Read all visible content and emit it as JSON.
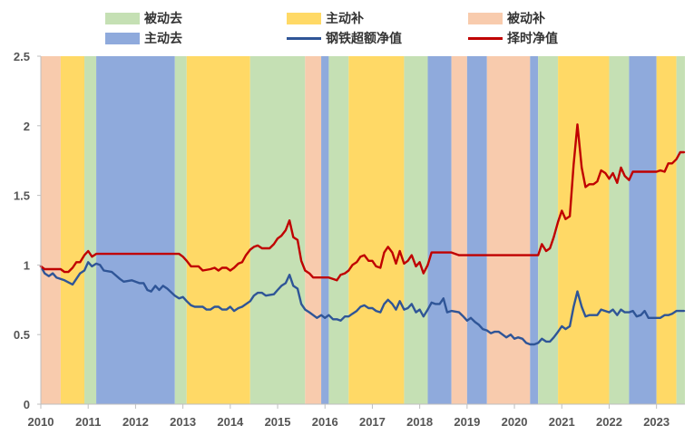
{
  "chart_data": {
    "type": "line",
    "title": "",
    "xlabel": "",
    "ylabel": "",
    "xlim": [
      2010.0,
      2023.6
    ],
    "ylim": [
      0,
      2.5
    ],
    "x_ticks": [
      "2010",
      "2011",
      "2012",
      "2013",
      "2014",
      "2015",
      "2016",
      "2017",
      "2018",
      "2019",
      "2020",
      "2021",
      "2022",
      "2023"
    ],
    "y_ticks": [
      "0",
      "0.5",
      "1",
      "1.5",
      "2",
      "2.5"
    ],
    "grid": false,
    "legend": {
      "position": "top",
      "regimes": [
        {
          "key": "bei_dong_qu",
          "label": "被动去",
          "color": "#c5e0b4"
        },
        {
          "key": "zhu_dong_bu",
          "label": "主动补",
          "color": "#ffd966"
        },
        {
          "key": "bei_dong_bu",
          "label": "被动补",
          "color": "#f8cbad"
        },
        {
          "key": "zhu_dong_qu",
          "label": "主动去",
          "color": "#8faadc"
        }
      ]
    },
    "regimes": [
      {
        "start": 2010.0,
        "end": 2010.42,
        "type": "bei_dong_bu"
      },
      {
        "start": 2010.42,
        "end": 2010.92,
        "type": "zhu_dong_bu"
      },
      {
        "start": 2010.92,
        "end": 2011.17,
        "type": "bei_dong_qu"
      },
      {
        "start": 2011.17,
        "end": 2012.83,
        "type": "zhu_dong_qu"
      },
      {
        "start": 2012.83,
        "end": 2013.08,
        "type": "bei_dong_qu"
      },
      {
        "start": 2013.08,
        "end": 2014.42,
        "type": "zhu_dong_bu"
      },
      {
        "start": 2014.42,
        "end": 2015.58,
        "type": "bei_dong_qu"
      },
      {
        "start": 2015.58,
        "end": 2015.92,
        "type": "bei_dong_bu"
      },
      {
        "start": 2015.92,
        "end": 2016.08,
        "type": "zhu_dong_qu"
      },
      {
        "start": 2016.08,
        "end": 2016.5,
        "type": "bei_dong_qu"
      },
      {
        "start": 2016.5,
        "end": 2017.67,
        "type": "zhu_dong_bu"
      },
      {
        "start": 2017.67,
        "end": 2018.17,
        "type": "bei_dong_qu"
      },
      {
        "start": 2018.17,
        "end": 2018.67,
        "type": "zhu_dong_qu"
      },
      {
        "start": 2018.67,
        "end": 2019.0,
        "type": "bei_dong_bu"
      },
      {
        "start": 2019.0,
        "end": 2019.42,
        "type": "zhu_dong_qu"
      },
      {
        "start": 2019.42,
        "end": 2020.33,
        "type": "bei_dong_bu"
      },
      {
        "start": 2020.33,
        "end": 2020.5,
        "type": "zhu_dong_qu"
      },
      {
        "start": 2020.5,
        "end": 2020.92,
        "type": "bei_dong_qu"
      },
      {
        "start": 2020.92,
        "end": 2022.0,
        "type": "zhu_dong_bu"
      },
      {
        "start": 2022.0,
        "end": 2022.42,
        "type": "bei_dong_qu"
      },
      {
        "start": 2022.42,
        "end": 2023.0,
        "type": "zhu_dong_qu"
      },
      {
        "start": 2023.0,
        "end": 2023.42,
        "type": "zhu_dong_bu"
      },
      {
        "start": 2023.42,
        "end": 2023.6,
        "type": "bei_dong_qu"
      }
    ],
    "series": [
      {
        "name": "钢铁超额净值",
        "color": "#2f5597",
        "points": [
          [
            2010.0,
            0.99
          ],
          [
            2010.08,
            0.94
          ],
          [
            2010.17,
            0.92
          ],
          [
            2010.25,
            0.94
          ],
          [
            2010.33,
            0.91
          ],
          [
            2010.5,
            0.89
          ],
          [
            2010.67,
            0.86
          ],
          [
            2010.83,
            0.94
          ],
          [
            2010.92,
            0.96
          ],
          [
            2011.0,
            1.02
          ],
          [
            2011.08,
            0.99
          ],
          [
            2011.17,
            1.01
          ],
          [
            2011.25,
            1.0
          ],
          [
            2011.33,
            0.96
          ],
          [
            2011.5,
            0.95
          ],
          [
            2011.67,
            0.9
          ],
          [
            2011.75,
            0.88
          ],
          [
            2011.92,
            0.89
          ],
          [
            2012.08,
            0.87
          ],
          [
            2012.17,
            0.87
          ],
          [
            2012.25,
            0.82
          ],
          [
            2012.33,
            0.81
          ],
          [
            2012.42,
            0.85
          ],
          [
            2012.5,
            0.82
          ],
          [
            2012.58,
            0.85
          ],
          [
            2012.67,
            0.83
          ],
          [
            2012.83,
            0.78
          ],
          [
            2012.92,
            0.76
          ],
          [
            2013.0,
            0.77
          ],
          [
            2013.08,
            0.74
          ],
          [
            2013.17,
            0.71
          ],
          [
            2013.25,
            0.7
          ],
          [
            2013.42,
            0.7
          ],
          [
            2013.5,
            0.68
          ],
          [
            2013.58,
            0.68
          ],
          [
            2013.67,
            0.7
          ],
          [
            2013.75,
            0.7
          ],
          [
            2013.83,
            0.68
          ],
          [
            2013.92,
            0.68
          ],
          [
            2014.0,
            0.7
          ],
          [
            2014.08,
            0.67
          ],
          [
            2014.17,
            0.69
          ],
          [
            2014.25,
            0.7
          ],
          [
            2014.42,
            0.74
          ],
          [
            2014.5,
            0.78
          ],
          [
            2014.58,
            0.8
          ],
          [
            2014.67,
            0.8
          ],
          [
            2014.75,
            0.78
          ],
          [
            2014.92,
            0.79
          ],
          [
            2015.0,
            0.82
          ],
          [
            2015.08,
            0.85
          ],
          [
            2015.17,
            0.87
          ],
          [
            2015.25,
            0.93
          ],
          [
            2015.33,
            0.85
          ],
          [
            2015.42,
            0.83
          ],
          [
            2015.5,
            0.72
          ],
          [
            2015.58,
            0.68
          ],
          [
            2015.67,
            0.66
          ],
          [
            2015.75,
            0.64
          ],
          [
            2015.83,
            0.62
          ],
          [
            2015.92,
            0.64
          ],
          [
            2016.0,
            0.62
          ],
          [
            2016.08,
            0.64
          ],
          [
            2016.17,
            0.61
          ],
          [
            2016.25,
            0.61
          ],
          [
            2016.33,
            0.6
          ],
          [
            2016.42,
            0.63
          ],
          [
            2016.5,
            0.63
          ],
          [
            2016.58,
            0.65
          ],
          [
            2016.67,
            0.67
          ],
          [
            2016.75,
            0.7
          ],
          [
            2016.83,
            0.71
          ],
          [
            2016.92,
            0.69
          ],
          [
            2017.0,
            0.69
          ],
          [
            2017.08,
            0.67
          ],
          [
            2017.17,
            0.66
          ],
          [
            2017.25,
            0.72
          ],
          [
            2017.33,
            0.75
          ],
          [
            2017.42,
            0.72
          ],
          [
            2017.5,
            0.68
          ],
          [
            2017.58,
            0.74
          ],
          [
            2017.67,
            0.68
          ],
          [
            2017.75,
            0.69
          ],
          [
            2017.83,
            0.72
          ],
          [
            2017.92,
            0.66
          ],
          [
            2018.0,
            0.68
          ],
          [
            2018.08,
            0.63
          ],
          [
            2018.17,
            0.68
          ],
          [
            2018.25,
            0.73
          ],
          [
            2018.33,
            0.72
          ],
          [
            2018.42,
            0.72
          ],
          [
            2018.5,
            0.76
          ],
          [
            2018.58,
            0.66
          ],
          [
            2018.67,
            0.67
          ],
          [
            2018.83,
            0.66
          ],
          [
            2018.92,
            0.63
          ],
          [
            2019.0,
            0.6
          ],
          [
            2019.08,
            0.62
          ],
          [
            2019.17,
            0.59
          ],
          [
            2019.25,
            0.57
          ],
          [
            2019.33,
            0.54
          ],
          [
            2019.42,
            0.53
          ],
          [
            2019.5,
            0.51
          ],
          [
            2019.58,
            0.52
          ],
          [
            2019.67,
            0.52
          ],
          [
            2019.75,
            0.5
          ],
          [
            2019.83,
            0.48
          ],
          [
            2019.92,
            0.5
          ],
          [
            2020.0,
            0.47
          ],
          [
            2020.08,
            0.48
          ],
          [
            2020.17,
            0.47
          ],
          [
            2020.25,
            0.44
          ],
          [
            2020.33,
            0.43
          ],
          [
            2020.42,
            0.43
          ],
          [
            2020.5,
            0.44
          ],
          [
            2020.58,
            0.47
          ],
          [
            2020.67,
            0.45
          ],
          [
            2020.75,
            0.45
          ],
          [
            2020.83,
            0.48
          ],
          [
            2020.92,
            0.52
          ],
          [
            2021.0,
            0.56
          ],
          [
            2021.08,
            0.54
          ],
          [
            2021.17,
            0.56
          ],
          [
            2021.25,
            0.7
          ],
          [
            2021.33,
            0.81
          ],
          [
            2021.42,
            0.7
          ],
          [
            2021.5,
            0.63
          ],
          [
            2021.58,
            0.64
          ],
          [
            2021.75,
            0.64
          ],
          [
            2021.83,
            0.68
          ],
          [
            2022.0,
            0.66
          ],
          [
            2022.08,
            0.68
          ],
          [
            2022.17,
            0.64
          ],
          [
            2022.25,
            0.68
          ],
          [
            2022.33,
            0.66
          ],
          [
            2022.42,
            0.66
          ],
          [
            2022.5,
            0.67
          ],
          [
            2022.58,
            0.63
          ],
          [
            2022.67,
            0.64
          ],
          [
            2022.75,
            0.67
          ],
          [
            2022.83,
            0.62
          ],
          [
            2023.0,
            0.62
          ],
          [
            2023.08,
            0.62
          ],
          [
            2023.17,
            0.64
          ],
          [
            2023.25,
            0.64
          ],
          [
            2023.33,
            0.65
          ],
          [
            2023.42,
            0.67
          ],
          [
            2023.58,
            0.67
          ]
        ]
      },
      {
        "name": "择时净值",
        "color": "#c00000",
        "points": [
          [
            2010.0,
            0.99
          ],
          [
            2010.08,
            0.97
          ],
          [
            2010.42,
            0.97
          ],
          [
            2010.5,
            0.95
          ],
          [
            2010.58,
            0.95
          ],
          [
            2010.67,
            0.98
          ],
          [
            2010.75,
            1.02
          ],
          [
            2010.83,
            1.02
          ],
          [
            2010.92,
            1.07
          ],
          [
            2011.0,
            1.1
          ],
          [
            2011.08,
            1.06
          ],
          [
            2011.17,
            1.08
          ],
          [
            2011.5,
            1.08
          ],
          [
            2012.0,
            1.08
          ],
          [
            2012.5,
            1.08
          ],
          [
            2012.92,
            1.08
          ],
          [
            2013.0,
            1.06
          ],
          [
            2013.08,
            1.03
          ],
          [
            2013.17,
            0.99
          ],
          [
            2013.33,
            0.99
          ],
          [
            2013.42,
            0.96
          ],
          [
            2013.58,
            0.97
          ],
          [
            2013.67,
            0.98
          ],
          [
            2013.75,
            0.96
          ],
          [
            2013.83,
            0.98
          ],
          [
            2013.92,
            0.98
          ],
          [
            2014.0,
            0.96
          ],
          [
            2014.08,
            0.98
          ],
          [
            2014.17,
            1.01
          ],
          [
            2014.25,
            1.02
          ],
          [
            2014.33,
            1.07
          ],
          [
            2014.42,
            1.11
          ],
          [
            2014.5,
            1.13
          ],
          [
            2014.58,
            1.14
          ],
          [
            2014.67,
            1.12
          ],
          [
            2014.83,
            1.12
          ],
          [
            2014.92,
            1.15
          ],
          [
            2015.0,
            1.19
          ],
          [
            2015.08,
            1.21
          ],
          [
            2015.17,
            1.25
          ],
          [
            2015.25,
            1.32
          ],
          [
            2015.33,
            1.2
          ],
          [
            2015.42,
            1.18
          ],
          [
            2015.5,
            1.03
          ],
          [
            2015.58,
            0.96
          ],
          [
            2015.67,
            0.94
          ],
          [
            2015.75,
            0.91
          ],
          [
            2016.0,
            0.91
          ],
          [
            2016.08,
            0.91
          ],
          [
            2016.25,
            0.89
          ],
          [
            2016.33,
            0.93
          ],
          [
            2016.42,
            0.94
          ],
          [
            2016.5,
            0.96
          ],
          [
            2016.58,
            1.0
          ],
          [
            2016.67,
            1.02
          ],
          [
            2016.75,
            1.06
          ],
          [
            2016.83,
            1.07
          ],
          [
            2016.92,
            1.03
          ],
          [
            2017.0,
            1.03
          ],
          [
            2017.08,
            0.99
          ],
          [
            2017.17,
            0.98
          ],
          [
            2017.25,
            1.09
          ],
          [
            2017.33,
            1.13
          ],
          [
            2017.42,
            1.09
          ],
          [
            2017.5,
            1.01
          ],
          [
            2017.58,
            1.1
          ],
          [
            2017.67,
            1.01
          ],
          [
            2017.75,
            1.03
          ],
          [
            2017.83,
            1.07
          ],
          [
            2017.92,
            0.99
          ],
          [
            2018.0,
            1.02
          ],
          [
            2018.08,
            0.94
          ],
          [
            2018.17,
            1.0
          ],
          [
            2018.25,
            1.09
          ],
          [
            2018.42,
            1.09
          ],
          [
            2018.67,
            1.09
          ],
          [
            2018.83,
            1.07
          ],
          [
            2019.0,
            1.07
          ],
          [
            2019.5,
            1.07
          ],
          [
            2020.0,
            1.07
          ],
          [
            2020.5,
            1.07
          ],
          [
            2020.58,
            1.15
          ],
          [
            2020.67,
            1.1
          ],
          [
            2020.75,
            1.12
          ],
          [
            2020.83,
            1.2
          ],
          [
            2020.92,
            1.31
          ],
          [
            2021.0,
            1.39
          ],
          [
            2021.08,
            1.33
          ],
          [
            2021.17,
            1.35
          ],
          [
            2021.25,
            1.72
          ],
          [
            2021.33,
            2.01
          ],
          [
            2021.42,
            1.7
          ],
          [
            2021.5,
            1.56
          ],
          [
            2021.58,
            1.58
          ],
          [
            2021.67,
            1.58
          ],
          [
            2021.75,
            1.6
          ],
          [
            2021.83,
            1.68
          ],
          [
            2021.92,
            1.66
          ],
          [
            2022.0,
            1.62
          ],
          [
            2022.08,
            1.66
          ],
          [
            2022.17,
            1.59
          ],
          [
            2022.25,
            1.7
          ],
          [
            2022.33,
            1.64
          ],
          [
            2022.42,
            1.61
          ],
          [
            2022.5,
            1.67
          ],
          [
            2022.58,
            1.67
          ],
          [
            2022.75,
            1.67
          ],
          [
            2023.0,
            1.67
          ],
          [
            2023.08,
            1.68
          ],
          [
            2023.17,
            1.67
          ],
          [
            2023.25,
            1.73
          ],
          [
            2023.33,
            1.73
          ],
          [
            2023.42,
            1.76
          ],
          [
            2023.5,
            1.81
          ],
          [
            2023.58,
            1.81
          ]
        ]
      }
    ]
  }
}
